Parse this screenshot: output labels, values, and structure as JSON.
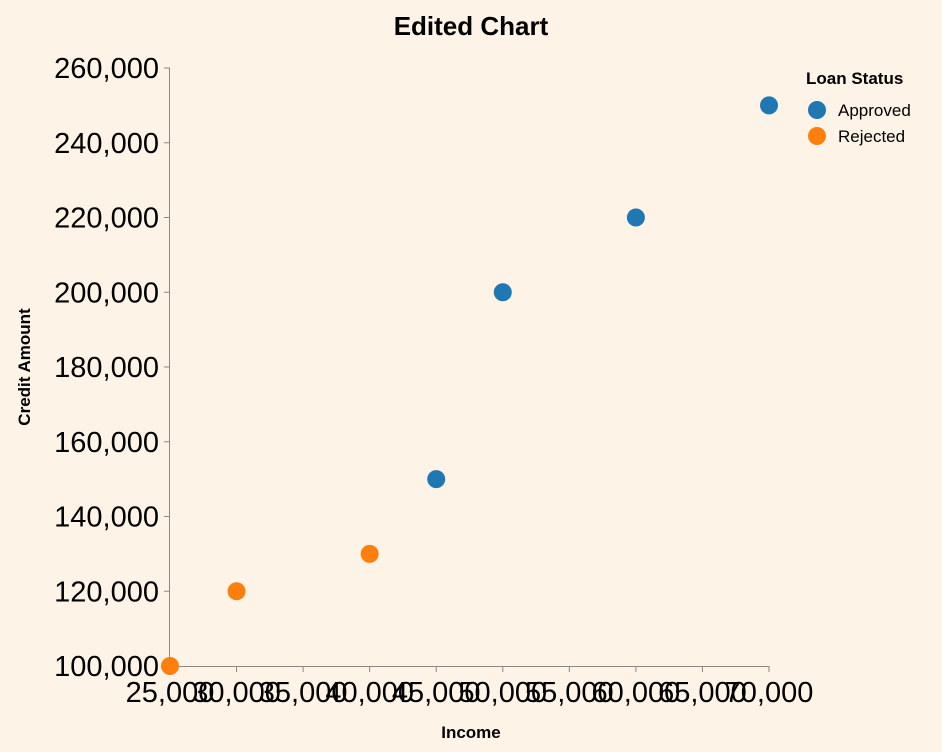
{
  "chart_data": {
    "type": "scatter",
    "title": "Edited Chart",
    "xlabel": "Income",
    "ylabel": "Credit Amount",
    "xlim": [
      25000,
      70000
    ],
    "ylim": [
      100000,
      260000
    ],
    "x_ticks": [
      "25,000",
      "30,000",
      "35,000",
      "40,000",
      "45,000",
      "50,000",
      "55,000",
      "60,000",
      "65,000",
      "70,000"
    ],
    "x_tick_values": [
      25000,
      30000,
      35000,
      40000,
      45000,
      50000,
      55000,
      60000,
      65000,
      70000
    ],
    "y_ticks": [
      "100,000",
      "120,000",
      "140,000",
      "160,000",
      "180,000",
      "200,000",
      "220,000",
      "240,000",
      "260,000"
    ],
    "y_tick_values": [
      100000,
      120000,
      140000,
      160000,
      180000,
      200000,
      220000,
      240000,
      260000
    ],
    "grid": false,
    "legend": {
      "title": "Loan Status",
      "placement": "top-right"
    },
    "series": [
      {
        "name": "Approved",
        "color": "#1f77b4",
        "points": [
          {
            "x": 45000,
            "y": 150000
          },
          {
            "x": 50000,
            "y": 200000
          },
          {
            "x": 60000,
            "y": 220000
          },
          {
            "x": 70000,
            "y": 250000
          }
        ]
      },
      {
        "name": "Rejected",
        "color": "#ff7f0e",
        "points": [
          {
            "x": 25000,
            "y": 100000
          },
          {
            "x": 30000,
            "y": 120000
          },
          {
            "x": 40000,
            "y": 130000
          }
        ]
      }
    ]
  }
}
